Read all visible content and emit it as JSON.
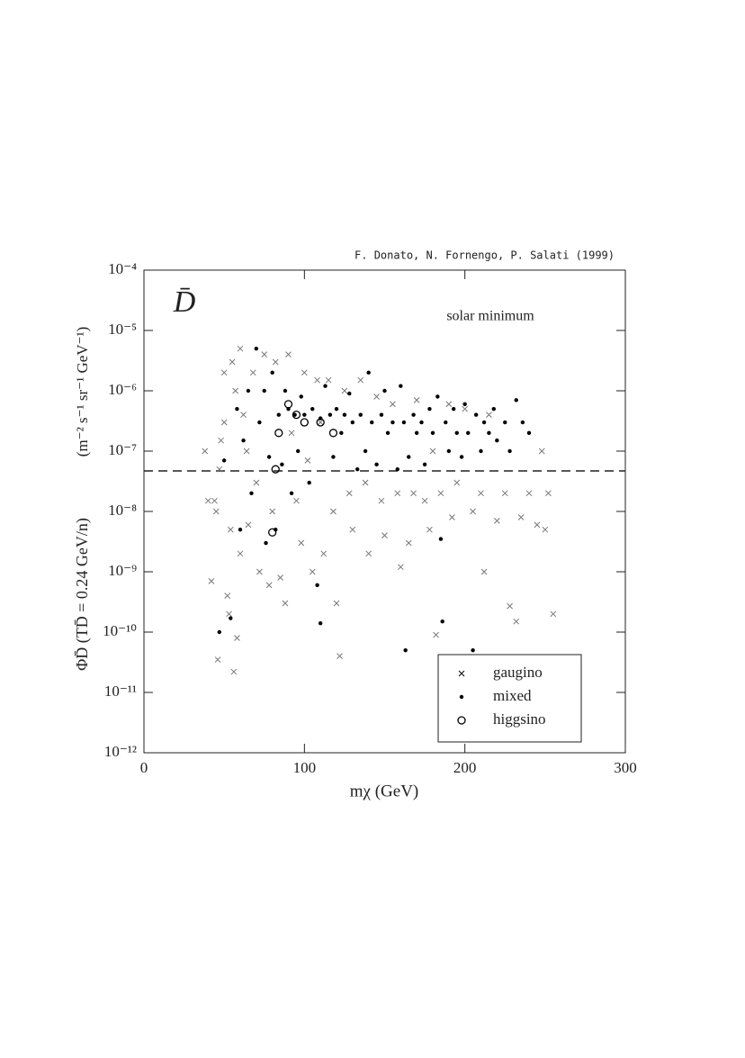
{
  "chart_data": {
    "type": "scatter",
    "credit": "F. Donato, N. Fornengo, P. Salati (1999)",
    "panel_label": "D̄",
    "annotation": "solar minimum",
    "xlabel": "mχ   (GeV)",
    "ylabel": "ΦD̄ (TD̄ = 0.24 GeV/n)",
    "yunits": "(m⁻² s⁻¹ sr⁻¹ GeV⁻¹)",
    "xlim": [
      0,
      300
    ],
    "xticks": [
      0,
      100,
      200,
      300
    ],
    "ylim": [
      1e-12,
      0.0001
    ],
    "ylog": true,
    "yticks": [
      {
        "value": 1e-12,
        "label": "10⁻¹²"
      },
      {
        "value": 1e-11,
        "label": "10⁻¹¹"
      },
      {
        "value": 1e-10,
        "label": "10⁻¹⁰"
      },
      {
        "value": 1e-09,
        "label": "10⁻⁹"
      },
      {
        "value": 1e-08,
        "label": "10⁻⁸"
      },
      {
        "value": 1e-07,
        "label": "10⁻⁷"
      },
      {
        "value": 1e-06,
        "label": "10⁻⁶"
      },
      {
        "value": 1e-05,
        "label": "10⁻⁵"
      },
      {
        "value": 0.0001,
        "label": "10⁻⁴"
      }
    ],
    "reference_line": 4.7e-08,
    "legend": "lower right",
    "series": [
      {
        "name": "gaugino",
        "marker": "x",
        "color": "#777777",
        "x": [
          38,
          40,
          42,
          44,
          45,
          46,
          47,
          48,
          50,
          50,
          52,
          53,
          54,
          55,
          56,
          57,
          58,
          60,
          60,
          62,
          64,
          65,
          68,
          70,
          72,
          75,
          78,
          80,
          82,
          85,
          88,
          90,
          92,
          95,
          98,
          100,
          102,
          105,
          108,
          110,
          112,
          115,
          118,
          120,
          122,
          125,
          128,
          130,
          135,
          138,
          140,
          145,
          148,
          150,
          155,
          158,
          160,
          165,
          168,
          170,
          175,
          178,
          180,
          182,
          185,
          190,
          192,
          195,
          200,
          205,
          210,
          212,
          215,
          220,
          225,
          228,
          232,
          235,
          240,
          245,
          248,
          250,
          252,
          255
        ],
        "y": [
          1e-07,
          1.5e-08,
          7e-10,
          1.5e-08,
          1e-08,
          3.5e-11,
          5e-08,
          1.5e-07,
          2e-06,
          3e-07,
          4e-10,
          2e-10,
          5e-09,
          3e-06,
          2.2e-11,
          1e-06,
          8e-11,
          5e-06,
          2e-09,
          4e-07,
          1e-07,
          6e-09,
          2e-06,
          3e-08,
          1e-09,
          4e-06,
          6e-10,
          1e-08,
          3e-06,
          8e-10,
          3e-10,
          4e-06,
          2e-07,
          1.5e-08,
          3e-09,
          2e-06,
          7e-08,
          1e-09,
          1.5e-06,
          3e-07,
          2e-09,
          1.5e-06,
          1e-08,
          3e-10,
          4e-11,
          1e-06,
          2e-08,
          5e-09,
          1.5e-06,
          3e-08,
          2e-09,
          8e-07,
          1.5e-08,
          4e-09,
          6e-07,
          2e-08,
          1.2e-09,
          3e-09,
          2e-08,
          7e-07,
          1.5e-08,
          5e-09,
          1e-07,
          9e-11,
          2e-08,
          6e-07,
          8e-09,
          3e-08,
          5e-07,
          1e-08,
          2e-08,
          1e-09,
          4e-07,
          7e-09,
          2e-08,
          2.7e-10,
          1.5e-10,
          8e-09,
          2e-08,
          6e-09,
          1e-07,
          5e-09,
          2e-08,
          2e-10
        ]
      },
      {
        "name": "mixed",
        "marker": "dot",
        "color": "#000000",
        "x": [
          47,
          50,
          54,
          58,
          60,
          62,
          65,
          67,
          70,
          72,
          75,
          76,
          78,
          80,
          82,
          84,
          86,
          88,
          90,
          92,
          94,
          96,
          98,
          100,
          103,
          105,
          108,
          110,
          110,
          113,
          116,
          118,
          120,
          123,
          125,
          128,
          130,
          133,
          135,
          138,
          140,
          142,
          145,
          148,
          150,
          152,
          155,
          158,
          160,
          162,
          163,
          165,
          168,
          170,
          173,
          175,
          178,
          180,
          183,
          185,
          186,
          188,
          190,
          193,
          195,
          198,
          200,
          202,
          205,
          207,
          210,
          212,
          215,
          218,
          220,
          225,
          228,
          232,
          236,
          240
        ],
        "y": [
          1e-10,
          7e-08,
          1.7e-10,
          5e-07,
          5e-09,
          1.5e-07,
          1e-06,
          2e-08,
          5e-06,
          3e-07,
          1e-06,
          3e-09,
          8e-08,
          2e-06,
          5e-09,
          4e-07,
          6e-08,
          1e-06,
          5e-07,
          2e-08,
          4e-07,
          1e-07,
          8e-07,
          4e-07,
          3e-08,
          5e-07,
          6e-10,
          1.4e-10,
          3.5e-07,
          1.2e-06,
          4e-07,
          8e-08,
          5e-07,
          2e-07,
          4e-07,
          9e-07,
          3e-07,
          5e-08,
          4e-07,
          1e-07,
          2e-06,
          3e-07,
          6e-08,
          4e-07,
          1e-06,
          2e-07,
          3e-07,
          5e-08,
          1.2e-06,
          3e-07,
          5e-11,
          8e-08,
          4e-07,
          2e-07,
          3e-07,
          6e-08,
          5e-07,
          2e-07,
          8e-07,
          3.5e-09,
          1.5e-10,
          3e-07,
          1e-07,
          5e-07,
          2e-07,
          8e-08,
          6e-07,
          2e-07,
          5e-11,
          4e-07,
          1e-07,
          3e-07,
          2e-07,
          5e-07,
          1.5e-07,
          3e-07,
          1e-07,
          7e-07,
          3e-07,
          2e-07
        ]
      },
      {
        "name": "higgsino",
        "marker": "circle",
        "color": "#000000",
        "x": [
          80,
          82,
          84,
          90,
          95,
          100,
          110,
          118
        ],
        "y": [
          4.5e-09,
          5e-08,
          2e-07,
          6e-07,
          4e-07,
          3e-07,
          3e-07,
          2e-07
        ]
      }
    ]
  }
}
